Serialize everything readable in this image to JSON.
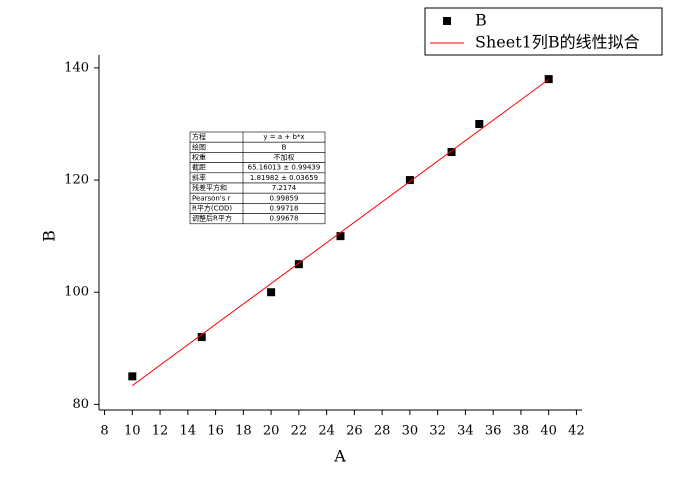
{
  "chart_data": {
    "type": "scatter",
    "x_label": "A",
    "y_label": "B",
    "xlim": [
      7.6,
      42.4
    ],
    "ylim": [
      79,
      142.3
    ],
    "xticks": [
      8,
      10,
      12,
      14,
      16,
      18,
      20,
      22,
      24,
      26,
      28,
      30,
      32,
      34,
      36,
      38,
      40,
      42
    ],
    "yticks": [
      80,
      100,
      120,
      140
    ],
    "legend": "top-right",
    "series": [
      {
        "name": "B",
        "type": "scatter",
        "color": "#000000",
        "x": [
          10,
          15,
          20,
          22,
          25,
          30,
          33,
          35,
          40
        ],
        "values": [
          85,
          92,
          100,
          105,
          110,
          120,
          125,
          130,
          138
        ]
      },
      {
        "name": "Sheet1列B的线性拟合",
        "type": "line",
        "color": "#ff0000",
        "x": [
          10,
          40
        ],
        "values": [
          83.36,
          137.95
        ]
      }
    ],
    "fit_table": [
      [
        "方程",
        "y = a + b*x"
      ],
      [
        "绘图",
        "B"
      ],
      [
        "权重",
        "不加权"
      ],
      [
        "截距",
        "65.16013 ± 0.99439"
      ],
      [
        "斜率",
        "1.81982 ± 0.03659"
      ],
      [
        "残差平方和",
        "7.2174"
      ],
      [
        "Pearson's r",
        "0.99859"
      ],
      [
        "R平方(COD)",
        "0.99718"
      ],
      [
        "调整后R平方",
        "0.99678"
      ]
    ]
  }
}
